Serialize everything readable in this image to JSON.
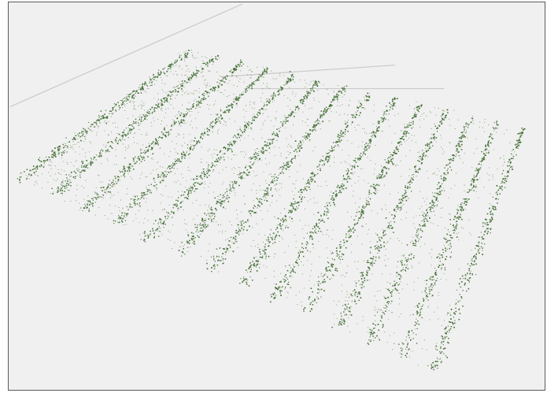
{
  "colors": {
    "background": "#f0f0f0",
    "point": "#2f5f1e",
    "grid_line": "#c9c9c9",
    "frame": "#5a5a5a"
  },
  "scene": {
    "type": "point-cloud",
    "subject": "crop-rows",
    "row_count": 14,
    "view": "oblique-3d"
  }
}
